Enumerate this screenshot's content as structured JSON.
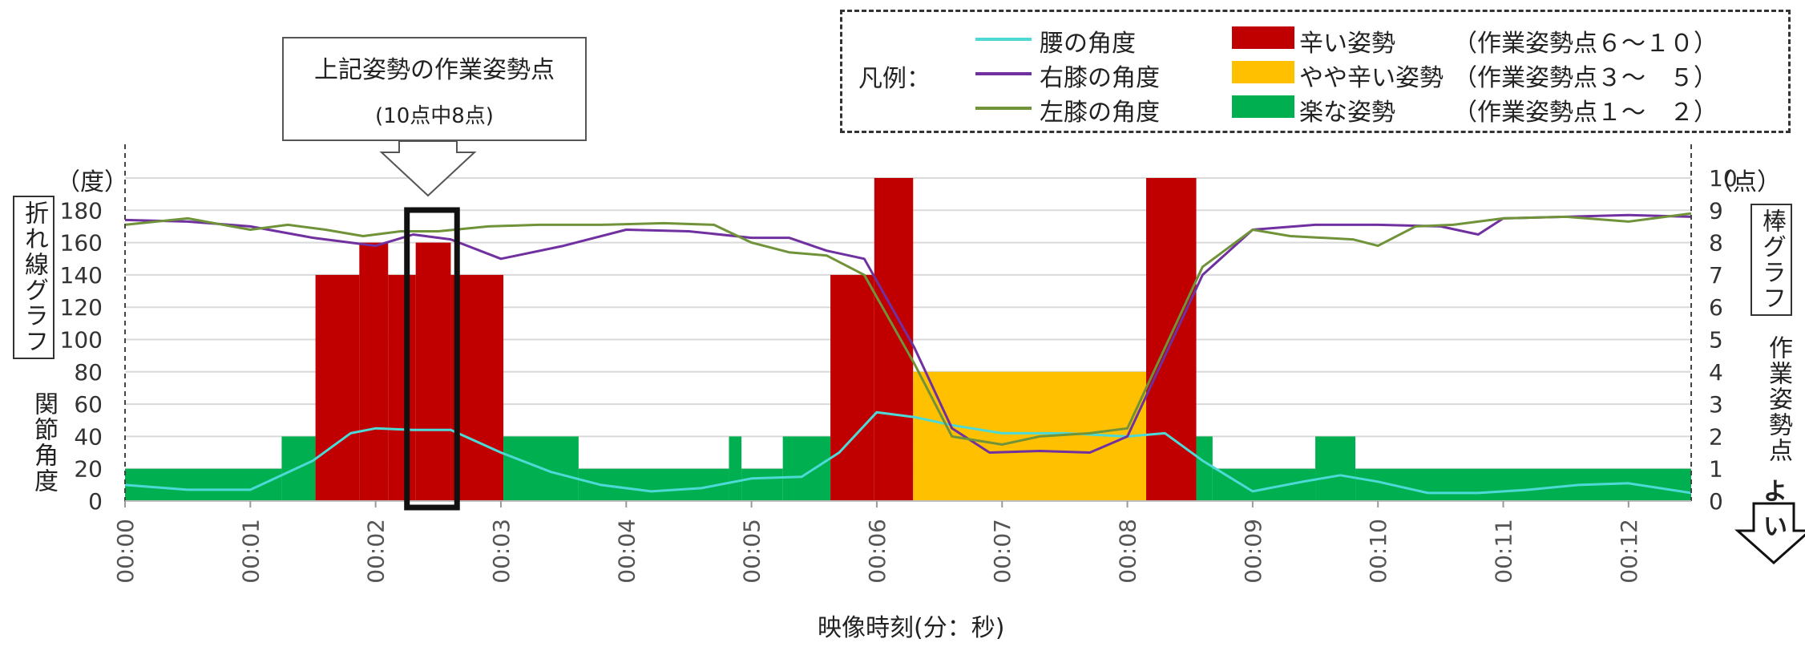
{
  "legend": {
    "title": "凡例：",
    "lines": [
      {
        "label": "腰の角度",
        "color": "#4DD9D6"
      },
      {
        "label": "右膝の角度",
        "color": "#7030A0"
      },
      {
        "label": "左膝の角度",
        "color": "#70933A"
      }
    ],
    "bars": [
      {
        "label": "辛い姿勢",
        "range": "（作業姿勢点６～１０）",
        "color": "#C00000"
      },
      {
        "label": "やや辛い姿勢",
        "range": "（作業姿勢点３～　５）",
        "color": "#FFC000"
      },
      {
        "label": "楽な姿勢",
        "range": "（作業姿勢点１～　２）",
        "color": "#00B050"
      }
    ]
  },
  "callout": {
    "line1": "上記姿勢の作業姿勢点",
    "line2": "(10点中8点)"
  },
  "left_axis": {
    "unit": "（度）",
    "boxed_label": "折れ線グラフ",
    "label": "関節角度"
  },
  "right_axis": {
    "unit": "（点）",
    "boxed_label": "棒グラフ",
    "label": "作業姿勢点",
    "good_label": "よい"
  },
  "chart_data": {
    "type": "bar+line",
    "xlabel": "映像時刻(分：秒)",
    "x_ticks": [
      "00:00",
      "00:01",
      "00:02",
      "00:03",
      "00:04",
      "00:05",
      "00:06",
      "00:07",
      "00:08",
      "00:09",
      "00:10",
      "00:11",
      "00:12"
    ],
    "x_range_seconds": [
      0,
      12.5
    ],
    "ylim_left": [
      0,
      200
    ],
    "y_ticks_left": [
      0,
      20,
      40,
      60,
      80,
      100,
      120,
      140,
      160,
      180
    ],
    "ylim_right": [
      0,
      10
    ],
    "y_ticks_right": [
      0,
      1,
      2,
      3,
      4,
      5,
      6,
      7,
      8,
      9,
      10
    ],
    "grid": true,
    "bars": [
      {
        "start": 0.0,
        "end": 1.25,
        "score": 1
      },
      {
        "start": 1.25,
        "end": 1.52,
        "score": 2
      },
      {
        "start": 1.52,
        "end": 1.87,
        "score": 7
      },
      {
        "start": 1.87,
        "end": 2.1,
        "score": 8
      },
      {
        "start": 2.1,
        "end": 2.32,
        "score": 7
      },
      {
        "start": 2.32,
        "end": 2.6,
        "score": 8
      },
      {
        "start": 2.6,
        "end": 3.02,
        "score": 7
      },
      {
        "start": 3.02,
        "end": 3.62,
        "score": 2
      },
      {
        "start": 3.62,
        "end": 4.82,
        "score": 1
      },
      {
        "start": 4.82,
        "end": 4.92,
        "score": 2
      },
      {
        "start": 4.92,
        "end": 5.25,
        "score": 1
      },
      {
        "start": 5.25,
        "end": 5.63,
        "score": 2
      },
      {
        "start": 5.63,
        "end": 5.98,
        "score": 7
      },
      {
        "start": 5.98,
        "end": 6.29,
        "score": 10
      },
      {
        "start": 6.29,
        "end": 8.15,
        "score": 4
      },
      {
        "start": 8.15,
        "end": 8.55,
        "score": 10
      },
      {
        "start": 8.55,
        "end": 8.68,
        "score": 2
      },
      {
        "start": 8.68,
        "end": 9.5,
        "score": 1
      },
      {
        "start": 9.5,
        "end": 9.82,
        "score": 2
      },
      {
        "start": 9.82,
        "end": 12.5,
        "score": 1
      }
    ],
    "series": [
      {
        "name": "腰の角度",
        "x": [
          0,
          0.5,
          1,
          1.5,
          1.8,
          2,
          2.3,
          2.6,
          3,
          3.4,
          3.8,
          4.2,
          4.6,
          5,
          5.4,
          5.7,
          6,
          6.3,
          6.6,
          7,
          7.5,
          8,
          8.3,
          8.6,
          9,
          9.4,
          9.7,
          10,
          10.4,
          10.8,
          11.2,
          11.6,
          12,
          12.5
        ],
        "values": [
          10,
          7,
          7,
          25,
          42,
          45,
          44,
          44,
          30,
          18,
          10,
          6,
          8,
          14,
          15,
          30,
          55,
          52,
          47,
          42,
          42,
          40,
          42,
          25,
          6,
          12,
          16,
          12,
          5,
          5,
          7,
          10,
          11,
          5
        ]
      },
      {
        "name": "右膝の角度",
        "x": [
          0,
          0.5,
          1,
          1.5,
          1.8,
          2,
          2.3,
          2.6,
          3,
          3.5,
          4,
          4.5,
          5,
          5.3,
          5.6,
          5.9,
          6.3,
          6.6,
          6.9,
          7.3,
          7.7,
          8,
          8.3,
          8.6,
          9,
          9.5,
          10,
          10.5,
          10.8,
          11,
          11.5,
          12,
          12.5
        ],
        "values": [
          174,
          173,
          170,
          163,
          160,
          158,
          165,
          162,
          150,
          158,
          168,
          167,
          163,
          163,
          155,
          150,
          95,
          45,
          30,
          31,
          30,
          40,
          90,
          140,
          168,
          171,
          171,
          170,
          165,
          175,
          176,
          177,
          176
        ]
      },
      {
        "name": "左膝の角度",
        "x": [
          0,
          0.5,
          1,
          1.3,
          1.6,
          1.9,
          2.2,
          2.5,
          2.9,
          3.3,
          3.8,
          4.3,
          4.7,
          5,
          5.3,
          5.6,
          5.9,
          6.3,
          6.6,
          7,
          7.3,
          7.7,
          8,
          8.3,
          8.6,
          9,
          9.3,
          9.8,
          10,
          10.3,
          10.6,
          11,
          11.5,
          12,
          12.5
        ],
        "values": [
          171,
          175,
          168,
          171,
          168,
          164,
          167,
          167,
          170,
          171,
          171,
          172,
          171,
          160,
          154,
          152,
          140,
          85,
          40,
          35,
          40,
          42,
          45,
          95,
          145,
          168,
          164,
          162,
          158,
          170,
          171,
          175,
          176,
          173,
          178
        ]
      }
    ]
  }
}
